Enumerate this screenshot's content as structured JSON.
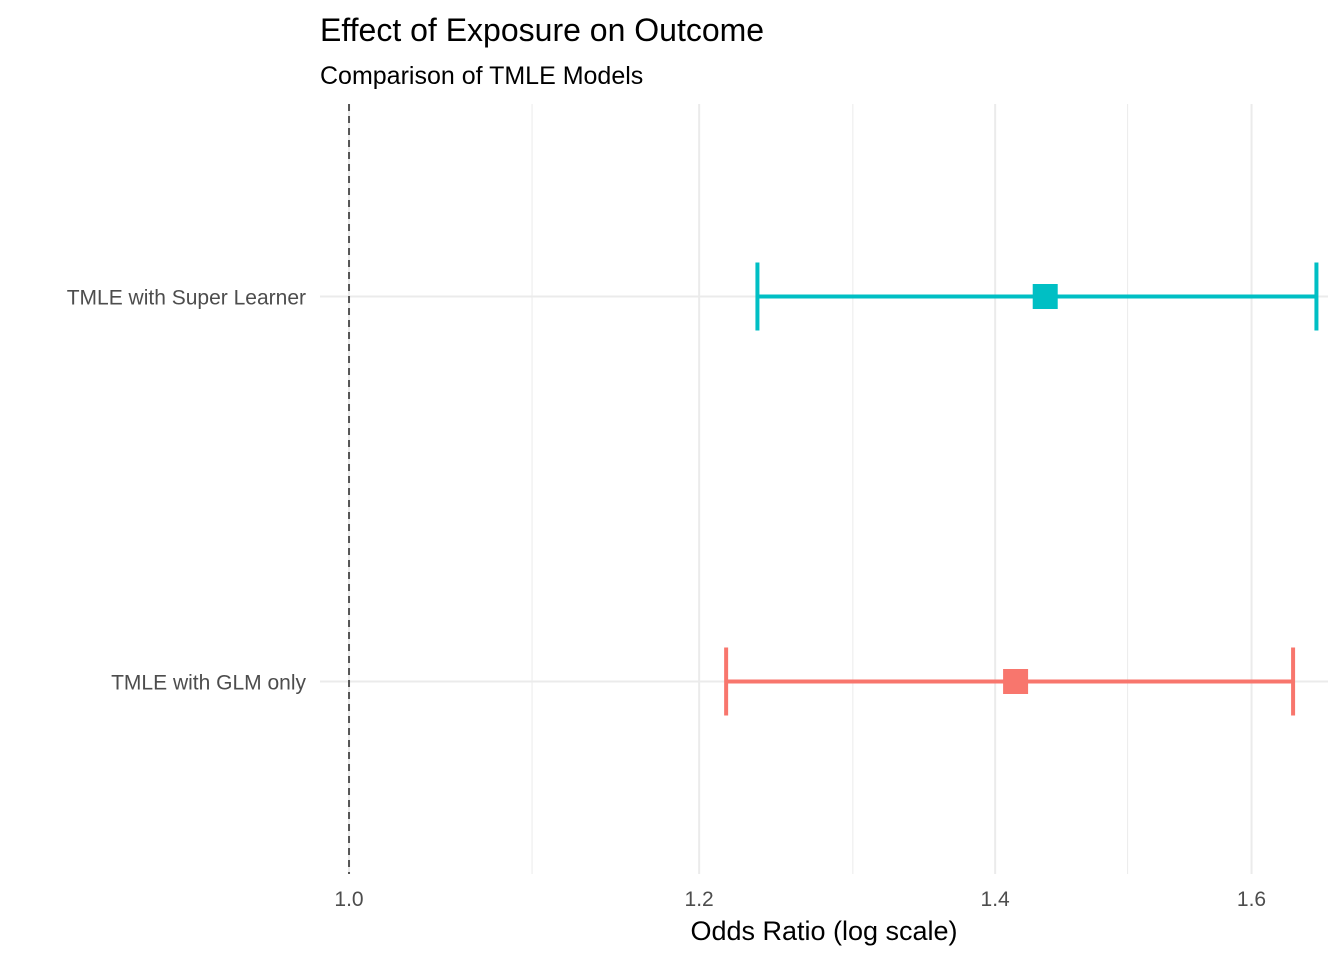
{
  "chart_data": {
    "type": "forest",
    "title": "Effect of Exposure on Outcome",
    "subtitle": "Comparison of TMLE Models",
    "xlabel": "Odds Ratio (log scale)",
    "ylabel": "",
    "x_scale": "log",
    "xlim": [
      0.985,
      1.665
    ],
    "x_ticks": [
      1.0,
      1.2,
      1.4,
      1.6
    ],
    "x_tick_labels": [
      "1.0",
      "1.2",
      "1.4",
      "1.6"
    ],
    "x_minor_ticks": [
      1.1,
      1.3,
      1.5
    ],
    "reference_line": 1.0,
    "grid": true,
    "legend": "none",
    "categories": [
      "TMLE with GLM only",
      "TMLE with Super Learner"
    ],
    "series": [
      {
        "model": "TMLE with GLM only",
        "estimate": 1.415,
        "lower": 1.217,
        "upper": 1.635,
        "color": "#F8766D"
      },
      {
        "model": "TMLE with Super Learner",
        "estimate": 1.437,
        "lower": 1.237,
        "upper": 1.655,
        "color": "#00BFC4"
      }
    ]
  }
}
